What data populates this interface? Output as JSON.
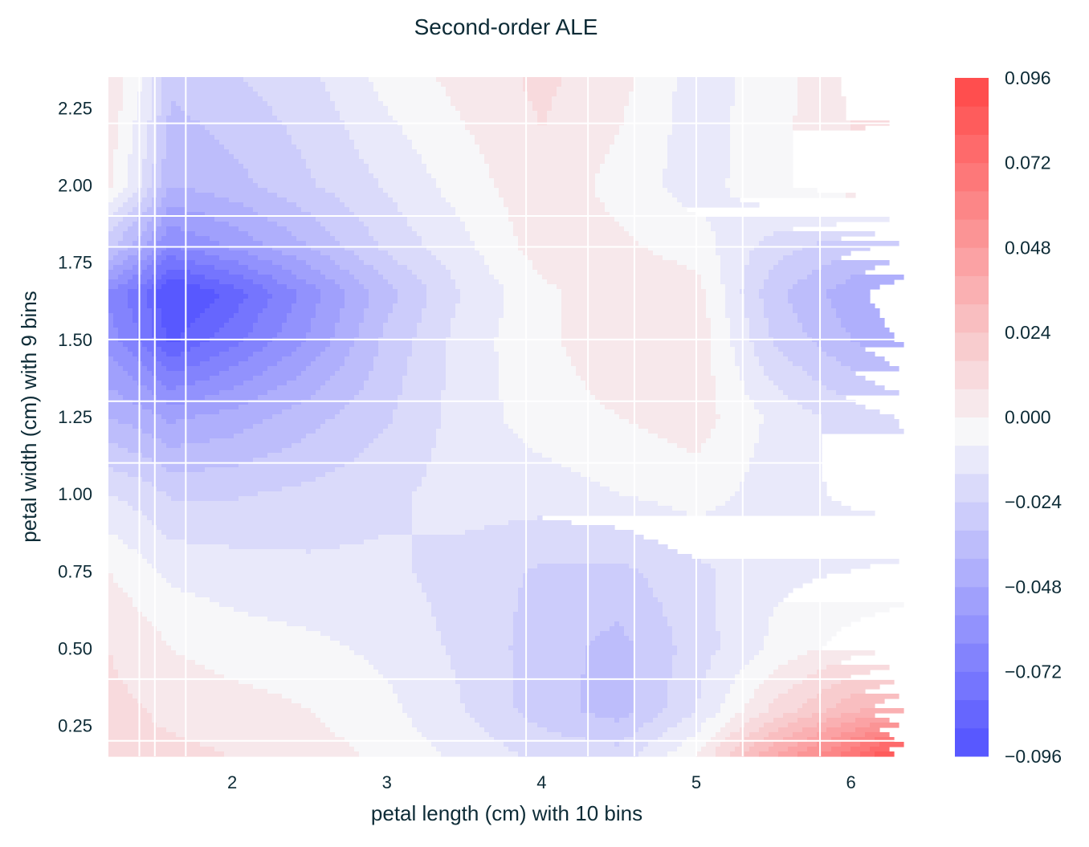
{
  "chart_data": {
    "type": "heatmap",
    "subtype": "filled-contour",
    "title": "Second-order ALE",
    "xlabel": "petal length (cm) with 10 bins",
    "ylabel": "petal width (cm) with 9 bins",
    "xlim": [
      1.2,
      6.35
    ],
    "ylim": [
      0.15,
      2.35
    ],
    "xticks": [
      2,
      3,
      4,
      5,
      6
    ],
    "xtick_labels": [
      "2",
      "3",
      "4",
      "5",
      "6"
    ],
    "yticks": [
      0.25,
      0.5,
      0.75,
      1.0,
      1.25,
      1.5,
      1.75,
      2.0,
      2.25
    ],
    "ytick_labels": [
      "0.25",
      "0.50",
      "0.75",
      "1.00",
      "1.25",
      "1.50",
      "1.75",
      "2.00",
      "2.25"
    ],
    "bin_edges_x": [
      1.4,
      1.5,
      1.7,
      3.9,
      4.3,
      4.6,
      5.0,
      5.3,
      5.8
    ],
    "bin_edges_y": [
      0.2,
      0.4,
      1.1,
      1.3,
      1.5,
      1.8,
      1.9,
      2.2
    ],
    "x": [
      1.2,
      1.45,
      1.6,
      2.0,
      2.5,
      3.0,
      3.5,
      4.0,
      4.5,
      5.0,
      5.5,
      6.0,
      6.35
    ],
    "y": [
      0.15,
      0.3,
      0.5,
      0.75,
      1.0,
      1.25,
      1.5,
      1.65,
      1.8,
      2.0,
      2.35
    ],
    "z": [
      [
        0.012,
        0.01,
        0.01,
        0.008,
        0.004,
        -0.002,
        -0.01,
        -0.018,
        -0.02,
        0.0,
        0.04,
        0.07,
        0.096
      ],
      [
        0.01,
        0.008,
        0.006,
        0.004,
        0.0,
        -0.006,
        -0.016,
        -0.028,
        -0.036,
        -0.016,
        0.01,
        0.03,
        0.04
      ],
      [
        0.008,
        0.004,
        0.0,
        -0.004,
        -0.006,
        -0.01,
        -0.018,
        -0.028,
        -0.035,
        -0.02,
        -0.006,
        0.004,
        0.008
      ],
      [
        0.0,
        -0.006,
        -0.01,
        -0.012,
        -0.014,
        -0.014,
        -0.02,
        -0.025,
        -0.026,
        -0.018,
        -0.01,
        -0.008,
        -0.006
      ],
      [
        -0.016,
        -0.02,
        -0.025,
        -0.025,
        -0.022,
        -0.018,
        -0.012,
        -0.012,
        -0.008,
        -0.004,
        -0.012,
        -0.018,
        -0.02
      ],
      [
        -0.04,
        -0.045,
        -0.05,
        -0.045,
        -0.035,
        -0.025,
        -0.012,
        -0.004,
        0.0,
        0.004,
        -0.01,
        -0.02,
        -0.025
      ],
      [
        -0.06,
        -0.075,
        -0.09,
        -0.075,
        -0.055,
        -0.03,
        -0.012,
        -0.002,
        0.006,
        0.006,
        -0.025,
        -0.04,
        -0.05
      ],
      [
        -0.065,
        -0.08,
        -0.1,
        -0.085,
        -0.06,
        -0.035,
        -0.015,
        -0.002,
        0.006,
        0.004,
        -0.03,
        -0.045,
        -0.055
      ],
      [
        -0.03,
        -0.05,
        -0.065,
        -0.055,
        -0.04,
        -0.022,
        -0.01,
        0.004,
        0.002,
        -0.004,
        -0.02,
        -0.03,
        -0.035
      ],
      [
        0.002,
        -0.02,
        -0.04,
        -0.035,
        -0.025,
        -0.015,
        -0.004,
        0.006,
        -0.003,
        -0.012,
        -0.002,
        0.006,
        0.005
      ],
      [
        0.008,
        -0.01,
        -0.03,
        -0.025,
        -0.018,
        -0.005,
        0.003,
        0.01,
        0.003,
        -0.012,
        -0.004,
        0.01,
        0.01
      ]
    ],
    "levels": {
      "min": -0.096,
      "max": 0.096,
      "step": 0.008
    },
    "colormap": {
      "min_color": "#5050ff",
      "mid_color": "#f7f7f9",
      "max_color": "#ff5050"
    },
    "colorbar": {
      "ticks": [
        0.096,
        0.072,
        0.048,
        0.024,
        0.0,
        -0.024,
        -0.048,
        -0.072,
        -0.096
      ],
      "tick_labels": [
        "0.096",
        "0.072",
        "0.048",
        "0.024",
        "0.000",
        "−0.024",
        "−0.048",
        "−0.072",
        "−0.096"
      ],
      "placement": "right"
    },
    "grid": false
  }
}
